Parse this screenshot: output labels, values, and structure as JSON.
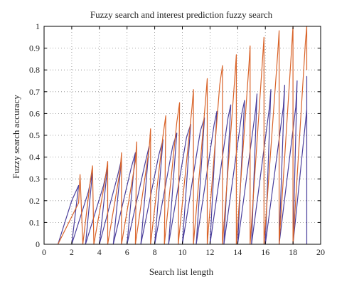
{
  "chart_data": {
    "type": "line",
    "title": "Fuzzy search and interest prediction fuzzy search",
    "xlabel": "Search list length",
    "ylabel": "Fuzzy search accuracy",
    "xlim": [
      0,
      20
    ],
    "ylim": [
      0,
      1
    ],
    "xticks": [
      "0",
      "2",
      "4",
      "6",
      "8",
      "10",
      "12",
      "14",
      "16",
      "18",
      "20"
    ],
    "yticks": [
      "0",
      "0.1",
      "0.2",
      "0.3",
      "0.4",
      "0.5",
      "0.6",
      "0.7",
      "0.8",
      "0.9",
      "1"
    ],
    "grid": true,
    "colors": {
      "series_a": "#4b3f9c",
      "series_b": "#d9642a",
      "axis": "#000000",
      "grid": "#888888"
    },
    "series": [
      {
        "color": "#4b3f9c",
        "points": [
          {
            "x": 1.0,
            "y": 0.0
          },
          {
            "x": 2.0,
            "y": 0.2
          },
          {
            "x": 2.5,
            "y": 0.27
          },
          {
            "x": 2.0,
            "y": 0.0
          },
          {
            "x": 3.2,
            "y": 0.24
          },
          {
            "x": 3.5,
            "y": 0.33
          },
          {
            "x": 3.0,
            "y": 0.0
          },
          {
            "x": 4.3,
            "y": 0.27
          },
          {
            "x": 4.6,
            "y": 0.36
          },
          {
            "x": 4.0,
            "y": 0.0
          },
          {
            "x": 5.3,
            "y": 0.31
          },
          {
            "x": 5.6,
            "y": 0.39
          },
          {
            "x": 5.0,
            "y": 0.0
          },
          {
            "x": 6.3,
            "y": 0.35
          },
          {
            "x": 6.6,
            "y": 0.42
          },
          {
            "x": 6.0,
            "y": 0.0
          },
          {
            "x": 7.3,
            "y": 0.37
          },
          {
            "x": 7.6,
            "y": 0.45
          },
          {
            "x": 7.0,
            "y": 0.0
          },
          {
            "x": 8.3,
            "y": 0.41
          },
          {
            "x": 8.6,
            "y": 0.48
          },
          {
            "x": 8.0,
            "y": 0.0
          },
          {
            "x": 9.3,
            "y": 0.45
          },
          {
            "x": 9.6,
            "y": 0.51
          },
          {
            "x": 9.0,
            "y": 0.0
          },
          {
            "x": 10.3,
            "y": 0.49
          },
          {
            "x": 10.6,
            "y": 0.55
          },
          {
            "x": 10.0,
            "y": 0.0
          },
          {
            "x": 11.3,
            "y": 0.52
          },
          {
            "x": 11.6,
            "y": 0.58
          },
          {
            "x": 11.0,
            "y": 0.0
          },
          {
            "x": 12.3,
            "y": 0.55
          },
          {
            "x": 12.5,
            "y": 0.61
          },
          {
            "x": 12.0,
            "y": 0.0
          },
          {
            "x": 13.3,
            "y": 0.58
          },
          {
            "x": 13.5,
            "y": 0.64
          },
          {
            "x": 13.0,
            "y": 0.0
          },
          {
            "x": 14.3,
            "y": 0.6
          },
          {
            "x": 14.5,
            "y": 0.66
          },
          {
            "x": 14.0,
            "y": 0.0
          },
          {
            "x": 15.3,
            "y": 0.62
          },
          {
            "x": 15.4,
            "y": 0.69
          },
          {
            "x": 15.0,
            "y": 0.0
          },
          {
            "x": 16.3,
            "y": 0.63
          },
          {
            "x": 16.4,
            "y": 0.71
          },
          {
            "x": 16.0,
            "y": 0.0
          },
          {
            "x": 17.3,
            "y": 0.63
          },
          {
            "x": 17.4,
            "y": 0.73
          },
          {
            "x": 17.0,
            "y": 0.0
          },
          {
            "x": 18.2,
            "y": 0.63
          },
          {
            "x": 18.3,
            "y": 0.75
          },
          {
            "x": 18.0,
            "y": 0.0
          },
          {
            "x": 19.0,
            "y": 0.62
          },
          {
            "x": 19.0,
            "y": 0.77
          },
          {
            "x": 19.0,
            "y": 0.0
          }
        ]
      },
      {
        "color": "#d9642a",
        "points": [
          {
            "x": 1.0,
            "y": 0.0
          },
          {
            "x": 2.5,
            "y": 0.19
          },
          {
            "x": 2.6,
            "y": 0.32
          },
          {
            "x": 2.8,
            "y": 0.0
          },
          {
            "x": 3.3,
            "y": 0.27
          },
          {
            "x": 3.5,
            "y": 0.36
          },
          {
            "x": 3.6,
            "y": 0.0
          },
          {
            "x": 4.4,
            "y": 0.29
          },
          {
            "x": 4.6,
            "y": 0.38
          },
          {
            "x": 4.6,
            "y": 0.0
          },
          {
            "x": 5.5,
            "y": 0.34
          },
          {
            "x": 5.6,
            "y": 0.42
          },
          {
            "x": 5.6,
            "y": 0.0
          },
          {
            "x": 6.6,
            "y": 0.38
          },
          {
            "x": 6.7,
            "y": 0.47
          },
          {
            "x": 6.6,
            "y": 0.0
          },
          {
            "x": 7.6,
            "y": 0.44
          },
          {
            "x": 7.7,
            "y": 0.53
          },
          {
            "x": 7.7,
            "y": 0.0
          },
          {
            "x": 8.6,
            "y": 0.5
          },
          {
            "x": 8.8,
            "y": 0.59
          },
          {
            "x": 8.7,
            "y": 0.0
          },
          {
            "x": 9.6,
            "y": 0.56
          },
          {
            "x": 9.8,
            "y": 0.65
          },
          {
            "x": 9.7,
            "y": 0.0
          },
          {
            "x": 10.7,
            "y": 0.63
          },
          {
            "x": 10.8,
            "y": 0.71
          },
          {
            "x": 10.8,
            "y": 0.0
          },
          {
            "x": 11.7,
            "y": 0.68
          },
          {
            "x": 11.8,
            "y": 0.76
          },
          {
            "x": 11.8,
            "y": 0.0
          },
          {
            "x": 12.7,
            "y": 0.73
          },
          {
            "x": 12.9,
            "y": 0.82
          },
          {
            "x": 12.9,
            "y": 0.0
          },
          {
            "x": 13.8,
            "y": 0.77
          },
          {
            "x": 13.9,
            "y": 0.87
          },
          {
            "x": 13.9,
            "y": 0.0
          },
          {
            "x": 14.8,
            "y": 0.81
          },
          {
            "x": 14.9,
            "y": 0.91
          },
          {
            "x": 14.9,
            "y": 0.0
          },
          {
            "x": 15.8,
            "y": 0.85
          },
          {
            "x": 15.9,
            "y": 0.95
          },
          {
            "x": 15.9,
            "y": 0.0
          },
          {
            "x": 16.9,
            "y": 0.88
          },
          {
            "x": 17.0,
            "y": 0.98
          },
          {
            "x": 17.0,
            "y": 0.0
          },
          {
            "x": 17.9,
            "y": 0.9
          },
          {
            "x": 18.0,
            "y": 1.0
          },
          {
            "x": 18.0,
            "y": 0.0
          },
          {
            "x": 18.9,
            "y": 0.93
          },
          {
            "x": 19.0,
            "y": 1.0
          },
          {
            "x": 19.0,
            "y": 0.8
          }
        ]
      }
    ]
  }
}
